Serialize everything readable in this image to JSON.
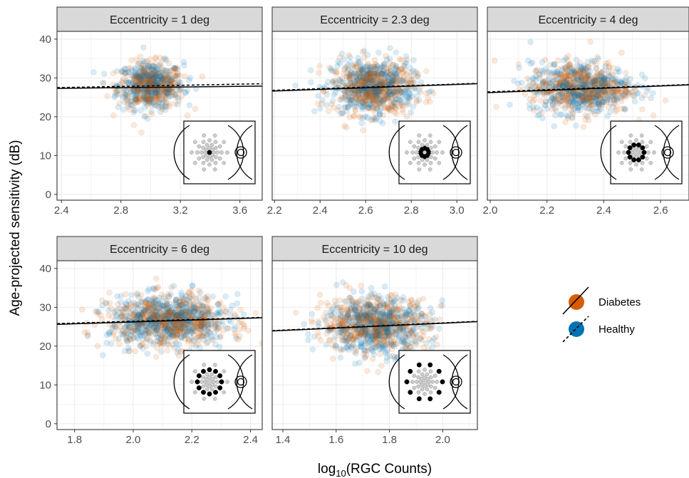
{
  "chart_data": {
    "type": "scatter",
    "ylabel": "Age-projected sensitivity (dB)",
    "xlabel": "log10(RGC Counts)",
    "xlabel_main": "log",
    "xlabel_sub": "10",
    "xlabel_rest": "(RGC Counts)",
    "legend": {
      "placement": "right",
      "entries": [
        {
          "name": "Diabetes",
          "color": "#D55E00",
          "line": "solid"
        },
        {
          "name": "Healthy",
          "color": "#0072B2",
          "line": "dashed"
        }
      ]
    },
    "colors": {
      "diabetes": "#D55E00",
      "healthy": "#0072B2",
      "panel_border": "#333333",
      "strip_fill": "#D9D9D9",
      "grid": "#EBEBEB"
    },
    "panels": [
      {
        "title": "Eccentricity = 1 deg",
        "xlim": [
          2.37,
          3.75
        ],
        "ylim": [
          -1.5,
          42
        ],
        "xticks": [
          "2.4",
          "2.8",
          "3.2",
          "3.6"
        ],
        "yticks": [
          "0",
          "10",
          "20",
          "30",
          "40"
        ],
        "cloud": {
          "x_center": 3.0,
          "x_sd": 0.11,
          "y_center": 28,
          "y_sd": 3.0,
          "n_points": 700
        },
        "diabetes_fit": {
          "x": [
            2.37,
            3.75
          ],
          "y": [
            27.3,
            27.9
          ]
        },
        "healthy_fit": {
          "x": [
            2.37,
            3.75
          ],
          "y": [
            27.5,
            28.5
          ]
        },
        "inset_ring": "center"
      },
      {
        "title": "Eccentricity = 2.3 deg",
        "xlim": [
          2.19,
          3.09
        ],
        "ylim": [
          -1.5,
          42
        ],
        "xticks": [
          "2.2",
          "2.4",
          "2.6",
          "2.8",
          "3.0"
        ],
        "yticks": [],
        "cloud": {
          "x_center": 2.63,
          "x_sd": 0.09,
          "y_center": 27.5,
          "y_sd": 3.5,
          "n_points": 900
        },
        "diabetes_fit": {
          "x": [
            2.19,
            3.09
          ],
          "y": [
            26.6,
            28.5
          ]
        },
        "healthy_fit": {
          "x": [
            2.19,
            3.09
          ],
          "y": [
            26.8,
            28.6
          ]
        },
        "inset_ring": "ring1"
      },
      {
        "title": "Eccentricity = 4 deg",
        "xlim": [
          1.99,
          2.7
        ],
        "ylim": [
          -1.5,
          42
        ],
        "xticks": [
          "2.0",
          "2.2",
          "2.4",
          "2.6"
        ],
        "yticks": [],
        "cloud": {
          "x_center": 2.32,
          "x_sd": 0.09,
          "y_center": 27.5,
          "y_sd": 3.3,
          "n_points": 900
        },
        "diabetes_fit": {
          "x": [
            1.99,
            2.7
          ],
          "y": [
            26.2,
            28.2
          ]
        },
        "healthy_fit": {
          "x": [
            1.99,
            2.7
          ],
          "y": [
            26.4,
            28.3
          ]
        },
        "inset_ring": "ring2"
      },
      {
        "title": "Eccentricity = 6 deg",
        "xlim": [
          1.74,
          2.44
        ],
        "ylim": [
          -1.5,
          42
        ],
        "xticks": [
          "1.8",
          "2.0",
          "2.2",
          "2.4"
        ],
        "yticks": [
          "0",
          "10",
          "20",
          "30",
          "40"
        ],
        "cloud": {
          "x_center": 2.12,
          "x_sd": 0.1,
          "y_center": 26.5,
          "y_sd": 3.3,
          "n_points": 1100
        },
        "diabetes_fit": {
          "x": [
            1.74,
            2.44
          ],
          "y": [
            25.6,
            27.3
          ]
        },
        "healthy_fit": {
          "x": [
            1.74,
            2.44
          ],
          "y": [
            25.8,
            27.4
          ]
        },
        "inset_ring": "ring3"
      },
      {
        "title": "Eccentricity = 10 deg",
        "xlim": [
          1.36,
          2.13
        ],
        "ylim": [
          -1.5,
          42
        ],
        "xticks": [
          "1.4",
          "1.6",
          "1.8",
          "2.0"
        ],
        "yticks": [],
        "cloud": {
          "x_center": 1.75,
          "x_sd": 0.1,
          "y_center": 25.5,
          "y_sd": 3.6,
          "n_points": 1000
        },
        "diabetes_fit": {
          "x": [
            1.36,
            2.13
          ],
          "y": [
            23.9,
            26.3
          ]
        },
        "healthy_fit": {
          "x": [
            1.36,
            2.13
          ],
          "y": [
            24.0,
            26.4
          ]
        },
        "inset_ring": "ring4"
      }
    ]
  }
}
